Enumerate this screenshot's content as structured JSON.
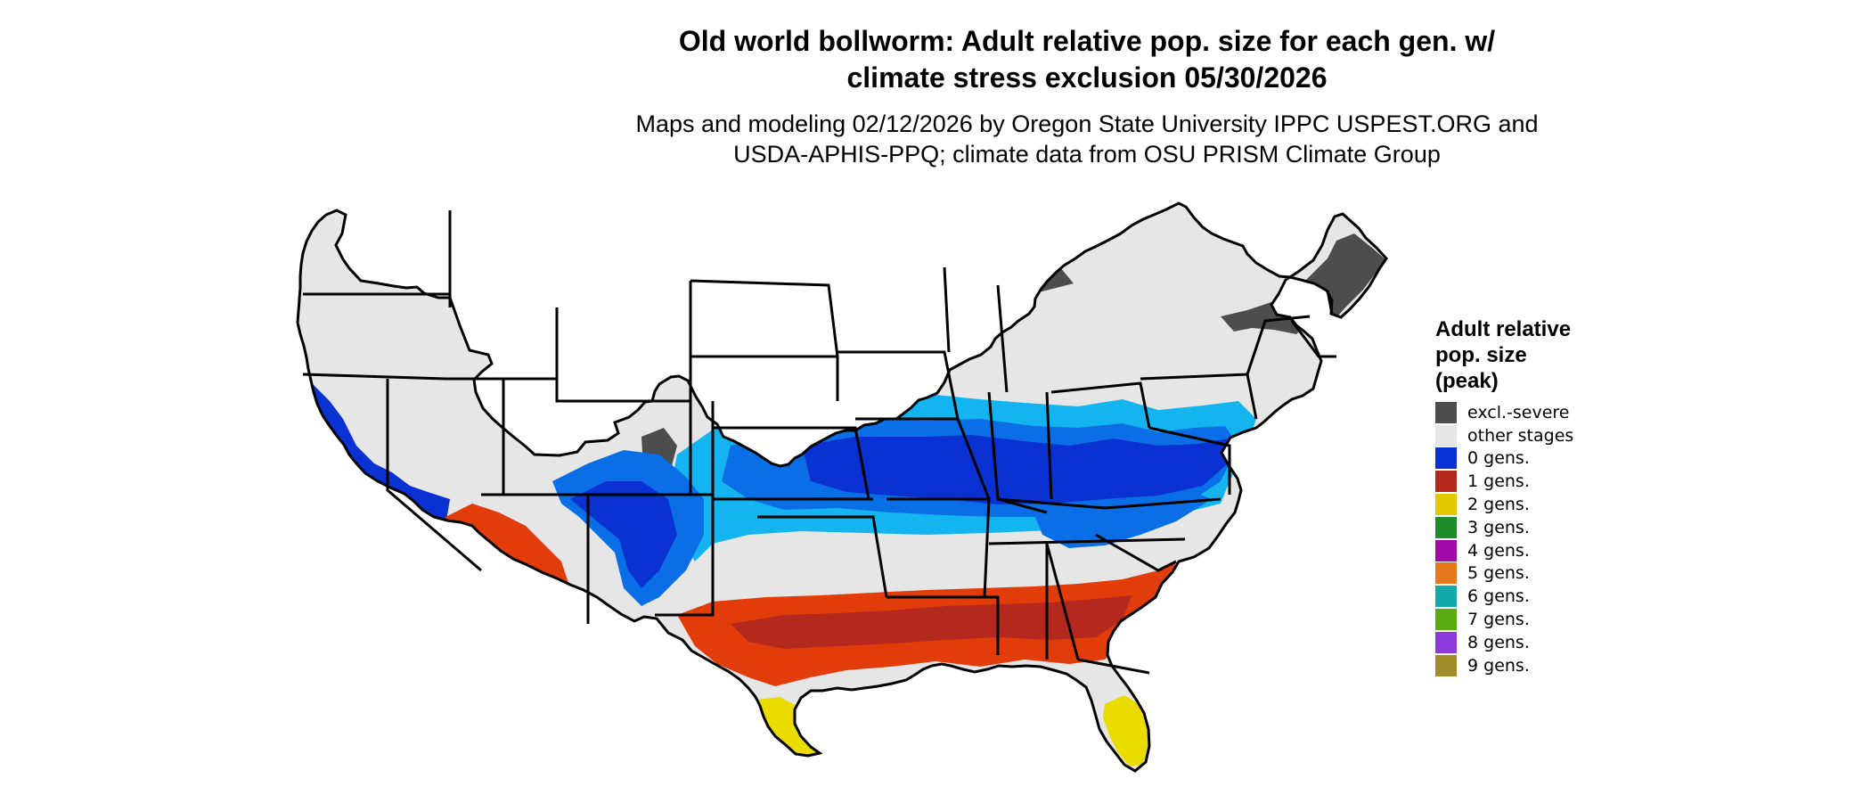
{
  "title_lines": [
    "Old world bollworm: Adult relative pop. size for each gen. w/",
    "climate stress exclusion 05/30/2026"
  ],
  "subtitle_lines": [
    "Maps and modeling 02/12/2026 by Oregon State University IPPC USPEST.ORG and",
    "USDA-APHIS-PPQ; climate data from OSU PRISM Climate Group"
  ],
  "legend": {
    "title": "Adult relative\npop. size\n(peak)",
    "items": [
      {
        "label": "excl.-severe",
        "color": "#4d4d4d"
      },
      {
        "label": "other stages",
        "color": "#e6e6e6"
      },
      {
        "label": "0 gens.",
        "color": "#0a32d2"
      },
      {
        "label": "1 gens.",
        "color": "#b4281e"
      },
      {
        "label": "2 gens.",
        "color": "#e1c800"
      },
      {
        "label": "3 gens.",
        "color": "#1e8c28"
      },
      {
        "label": "4 gens.",
        "color": "#a00aaa"
      },
      {
        "label": "5 gens.",
        "color": "#e6781e"
      },
      {
        "label": "6 gens.",
        "color": "#14aaaa"
      },
      {
        "label": "7 gens.",
        "color": "#5aaa14"
      },
      {
        "label": "8 gens.",
        "color": "#8c3cdc"
      },
      {
        "label": "9 gens.",
        "color": "#a08c28"
      }
    ]
  },
  "map_colors": {
    "land": "#e6e6e6",
    "excluded": "#4d4d4d",
    "cold_blue": "#0a32d2",
    "light_blue": "#14b4f0",
    "mid_blue": "#0a6ee6",
    "red_orange": "#e13c0a",
    "dark_red": "#b4281e",
    "yellow": "#ebdc00",
    "border": "#000000"
  }
}
